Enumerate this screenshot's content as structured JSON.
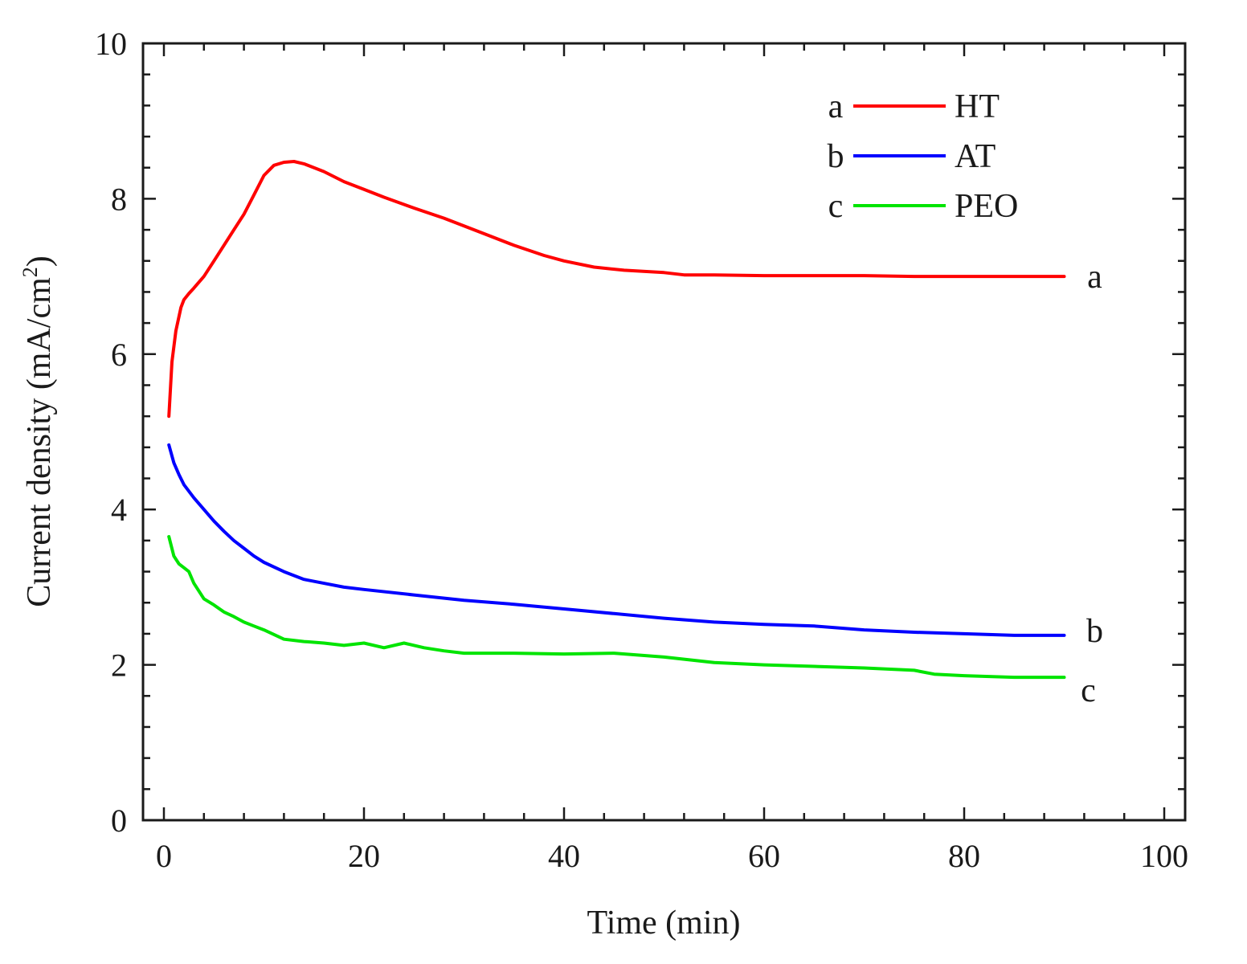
{
  "chart_data": {
    "type": "line",
    "title": "",
    "xlabel": "Time (min)",
    "ylabel_main": "Current density (mA/cm",
    "ylabel_sup": "2",
    "ylabel_close": ")",
    "xlim": [
      0,
      100
    ],
    "ylim": [
      0,
      10
    ],
    "xticks": [
      0,
      20,
      40,
      60,
      80,
      100
    ],
    "yticks": [
      0,
      2,
      4,
      6,
      8,
      10
    ],
    "x_minor_step": 4,
    "y_minor_step": 0.4,
    "grid": false,
    "legend_position": "top-right",
    "series": [
      {
        "name": "HT",
        "letter": "a",
        "end_label": "a",
        "color": "#ff0000",
        "x": [
          0.5,
          0.8,
          1.2,
          1.7,
          2.0,
          2.5,
          3.0,
          4.0,
          5.0,
          6.0,
          7.0,
          8.0,
          9.0,
          10.0,
          11.0,
          12.0,
          13.0,
          14.0,
          15.0,
          16.0,
          18.0,
          20.0,
          22.0,
          25.0,
          28.0,
          30.0,
          32.0,
          35.0,
          38.0,
          40.0,
          43.0,
          46.0,
          50.0,
          52.0,
          55.0,
          60.0,
          65.0,
          70.0,
          75.0,
          80.0,
          85.0,
          90.0
        ],
        "y": [
          5.2,
          5.9,
          6.3,
          6.6,
          6.7,
          6.78,
          6.85,
          7.0,
          7.2,
          7.4,
          7.6,
          7.8,
          8.05,
          8.3,
          8.43,
          8.47,
          8.48,
          8.45,
          8.4,
          8.35,
          8.22,
          8.12,
          8.02,
          7.88,
          7.75,
          7.65,
          7.55,
          7.4,
          7.27,
          7.2,
          7.12,
          7.08,
          7.05,
          7.02,
          7.02,
          7.01,
          7.01,
          7.01,
          7.0,
          7.0,
          7.0,
          7.0
        ]
      },
      {
        "name": "AT",
        "letter": "b",
        "end_label": "b",
        "color": "#0000ff",
        "x": [
          0.5,
          1.0,
          1.5,
          2.0,
          3.0,
          4.0,
          5.0,
          6.0,
          7.0,
          8.0,
          9.0,
          10.0,
          12.0,
          14.0,
          16.0,
          18.0,
          20.0,
          25.0,
          30.0,
          35.0,
          40.0,
          45.0,
          50.0,
          55.0,
          60.0,
          65.0,
          70.0,
          75.0,
          80.0,
          85.0,
          90.0
        ],
        "y": [
          4.83,
          4.6,
          4.45,
          4.32,
          4.15,
          4.0,
          3.85,
          3.72,
          3.6,
          3.5,
          3.4,
          3.32,
          3.2,
          3.1,
          3.05,
          3.0,
          2.97,
          2.9,
          2.83,
          2.78,
          2.72,
          2.66,
          2.6,
          2.55,
          2.52,
          2.5,
          2.45,
          2.42,
          2.4,
          2.38,
          2.38
        ]
      },
      {
        "name": "PEO",
        "letter": "c",
        "end_label": "c",
        "color": "#00e400",
        "x": [
          0.5,
          1.0,
          1.5,
          2.0,
          2.5,
          3.0,
          4.0,
          5.0,
          6.0,
          7.0,
          8.0,
          9.0,
          10.0,
          12.0,
          14.0,
          16.0,
          18.0,
          20.0,
          22.0,
          24.0,
          26.0,
          28.0,
          30.0,
          35.0,
          40.0,
          45.0,
          50.0,
          55.0,
          60.0,
          65.0,
          70.0,
          75.0,
          77.0,
          80.0,
          85.0,
          90.0
        ],
        "y": [
          3.65,
          3.4,
          3.3,
          3.25,
          3.2,
          3.05,
          2.85,
          2.77,
          2.68,
          2.62,
          2.55,
          2.5,
          2.45,
          2.33,
          2.3,
          2.28,
          2.25,
          2.28,
          2.22,
          2.28,
          2.22,
          2.18,
          2.15,
          2.15,
          2.14,
          2.15,
          2.1,
          2.03,
          2.0,
          1.98,
          1.96,
          1.93,
          1.88,
          1.86,
          1.84,
          1.84
        ]
      }
    ]
  }
}
